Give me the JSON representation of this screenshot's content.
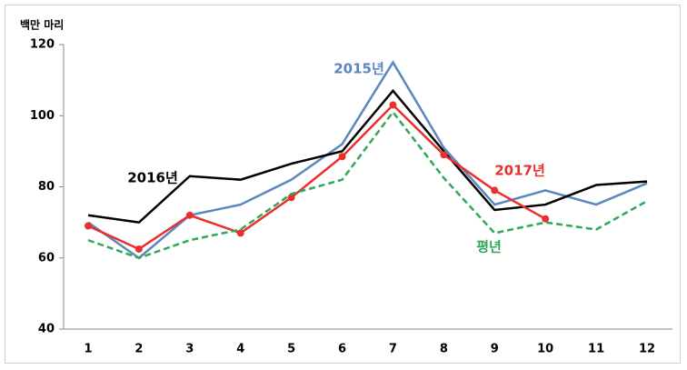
{
  "chart_data": {
    "type": "line",
    "y_label": "백만 마리",
    "categories": [
      "1",
      "2",
      "3",
      "4",
      "5",
      "6",
      "7",
      "8",
      "9",
      "10",
      "11",
      "12"
    ],
    "series": [
      {
        "name": "2015년",
        "color": "#5b87c0",
        "dash": false,
        "markers": false,
        "values": [
          70,
          60,
          72,
          75,
          82,
          92,
          115,
          91,
          75,
          79,
          75,
          81
        ]
      },
      {
        "name": "2016년",
        "color": "#000000",
        "dash": false,
        "markers": false,
        "values": [
          72,
          70,
          83,
          82,
          86.5,
          90,
          107,
          90,
          73.5,
          75,
          80.5,
          81.5
        ]
      },
      {
        "name": "2017년",
        "color": "#e8302c",
        "dash": false,
        "markers": true,
        "values": [
          69,
          62.5,
          72,
          67,
          77,
          88.5,
          103,
          89,
          79,
          71,
          null,
          null
        ]
      },
      {
        "name": "평년",
        "color": "#2ea95a",
        "dash": true,
        "markers": false,
        "values": [
          65,
          60,
          65,
          68,
          78,
          82,
          101,
          82.5,
          67,
          70,
          68,
          76
        ]
      }
    ],
    "ylim": [
      40,
      120
    ],
    "yticks": [
      40,
      60,
      80,
      100,
      120
    ],
    "grid": false
  }
}
